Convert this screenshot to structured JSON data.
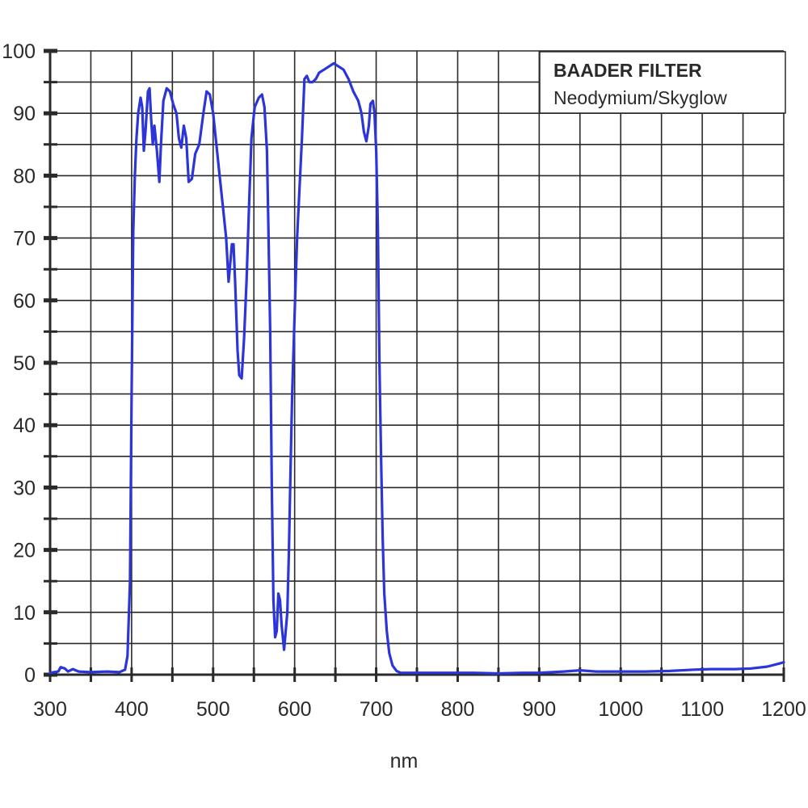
{
  "chart_data": {
    "type": "line",
    "title": "BAADER FILTER",
    "subtitle": "Neodymium/Skyglow",
    "xlabel": "nm",
    "ylabel": "",
    "xlim": [
      300,
      1200
    ],
    "ylim": [
      0,
      100
    ],
    "grid": true,
    "x_major_step": 100,
    "x_minor_step": 50,
    "y_major_step": 10,
    "y_minor_step": 5,
    "x_ticks": [
      300,
      400,
      500,
      600,
      700,
      800,
      900,
      1000,
      1100,
      1200
    ],
    "y_ticks": [
      0,
      10,
      20,
      30,
      40,
      50,
      60,
      70,
      80,
      90,
      100
    ],
    "legend_position": "top-right",
    "series": [
      {
        "name": "Neodymium/Skyglow transmission",
        "color": "#2b35d8",
        "points": [
          [
            300,
            0.3
          ],
          [
            310,
            0.5
          ],
          [
            313,
            1.2
          ],
          [
            318,
            1.0
          ],
          [
            322,
            0.5
          ],
          [
            328,
            0.9
          ],
          [
            335,
            0.5
          ],
          [
            350,
            0.4
          ],
          [
            370,
            0.5
          ],
          [
            385,
            0.4
          ],
          [
            392,
            0.8
          ],
          [
            395,
            3
          ],
          [
            398,
            15
          ],
          [
            400,
            45
          ],
          [
            402,
            71
          ],
          [
            404,
            80
          ],
          [
            406,
            86
          ],
          [
            408,
            90
          ],
          [
            411,
            92.5
          ],
          [
            413,
            91
          ],
          [
            415,
            84
          ],
          [
            417,
            87
          ],
          [
            420,
            93.5
          ],
          [
            422,
            94
          ],
          [
            424,
            89
          ],
          [
            426,
            85
          ],
          [
            428,
            88
          ],
          [
            431,
            84
          ],
          [
            434,
            79
          ],
          [
            436,
            85
          ],
          [
            439,
            92
          ],
          [
            443,
            94
          ],
          [
            447,
            93.5
          ],
          [
            451,
            91.5
          ],
          [
            455,
            90
          ],
          [
            458,
            86
          ],
          [
            461,
            84.5
          ],
          [
            464,
            88
          ],
          [
            467,
            86
          ],
          [
            470,
            79
          ],
          [
            474,
            79.5
          ],
          [
            478,
            83.5
          ],
          [
            483,
            85
          ],
          [
            488,
            90
          ],
          [
            492,
            93.5
          ],
          [
            496,
            93
          ],
          [
            500,
            90
          ],
          [
            504,
            85
          ],
          [
            508,
            80
          ],
          [
            512,
            75
          ],
          [
            516,
            70
          ],
          [
            519,
            63
          ],
          [
            521,
            66
          ],
          [
            523,
            69
          ],
          [
            525,
            69
          ],
          [
            527,
            63
          ],
          [
            530,
            52
          ],
          [
            532,
            48
          ],
          [
            535,
            47.5
          ],
          [
            538,
            54
          ],
          [
            541,
            63
          ],
          [
            544,
            75
          ],
          [
            547,
            86
          ],
          [
            551,
            91
          ],
          [
            556,
            92.5
          ],
          [
            560,
            93
          ],
          [
            563,
            91
          ],
          [
            566,
            84
          ],
          [
            568,
            70
          ],
          [
            570,
            55
          ],
          [
            572,
            30
          ],
          [
            574,
            12
          ],
          [
            576,
            6
          ],
          [
            578,
            7
          ],
          [
            580,
            13
          ],
          [
            582,
            12
          ],
          [
            584,
            8
          ],
          [
            587,
            4
          ],
          [
            589,
            7
          ],
          [
            591,
            10
          ],
          [
            593,
            20
          ],
          [
            595,
            33
          ],
          [
            597,
            45
          ],
          [
            600,
            58
          ],
          [
            603,
            70
          ],
          [
            606,
            78
          ],
          [
            609,
            86
          ],
          [
            612,
            95.5
          ],
          [
            615,
            96
          ],
          [
            618,
            95
          ],
          [
            622,
            95
          ],
          [
            626,
            95.5
          ],
          [
            630,
            96.5
          ],
          [
            636,
            97
          ],
          [
            642,
            97.5
          ],
          [
            648,
            98
          ],
          [
            654,
            97.5
          ],
          [
            660,
            97
          ],
          [
            666,
            95.5
          ],
          [
            672,
            93.5
          ],
          [
            678,
            92
          ],
          [
            682,
            90
          ],
          [
            685,
            87
          ],
          [
            688,
            85.5
          ],
          [
            691,
            88
          ],
          [
            693,
            91.5
          ],
          [
            696,
            92
          ],
          [
            698,
            90
          ],
          [
            700,
            84
          ],
          [
            702,
            72
          ],
          [
            704,
            50
          ],
          [
            706,
            35
          ],
          [
            708,
            22
          ],
          [
            710,
            13
          ],
          [
            713,
            7
          ],
          [
            716,
            3.5
          ],
          [
            720,
            1.5
          ],
          [
            725,
            0.6
          ],
          [
            730,
            0.3
          ],
          [
            760,
            0.3
          ],
          [
            790,
            0.3
          ],
          [
            820,
            0.3
          ],
          [
            850,
            0.2
          ],
          [
            880,
            0.3
          ],
          [
            900,
            0.3
          ],
          [
            930,
            0.5
          ],
          [
            950,
            0.7
          ],
          [
            970,
            0.5
          ],
          [
            1000,
            0.5
          ],
          [
            1030,
            0.5
          ],
          [
            1060,
            0.6
          ],
          [
            1090,
            0.8
          ],
          [
            1110,
            0.9
          ],
          [
            1140,
            0.9
          ],
          [
            1160,
            1.0
          ],
          [
            1180,
            1.3
          ],
          [
            1195,
            1.8
          ],
          [
            1200,
            2.0
          ]
        ]
      }
    ]
  },
  "legend": {
    "title": "BAADER FILTER",
    "subtitle": "Neodymium/Skyglow"
  },
  "axes": {
    "x_title": "nm",
    "x_tick_labels": [
      "300",
      "400",
      "500",
      "600",
      "700",
      "800",
      "900",
      "1000",
      "1100",
      "1200"
    ],
    "y_tick_labels": [
      "0",
      "10",
      "20",
      "30",
      "40",
      "50",
      "60",
      "70",
      "80",
      "90",
      "100"
    ]
  },
  "colors": {
    "curve": "#2b35d8",
    "grid": "#2a2a2a",
    "text": "#2a2a2a",
    "background": "#ffffff"
  }
}
